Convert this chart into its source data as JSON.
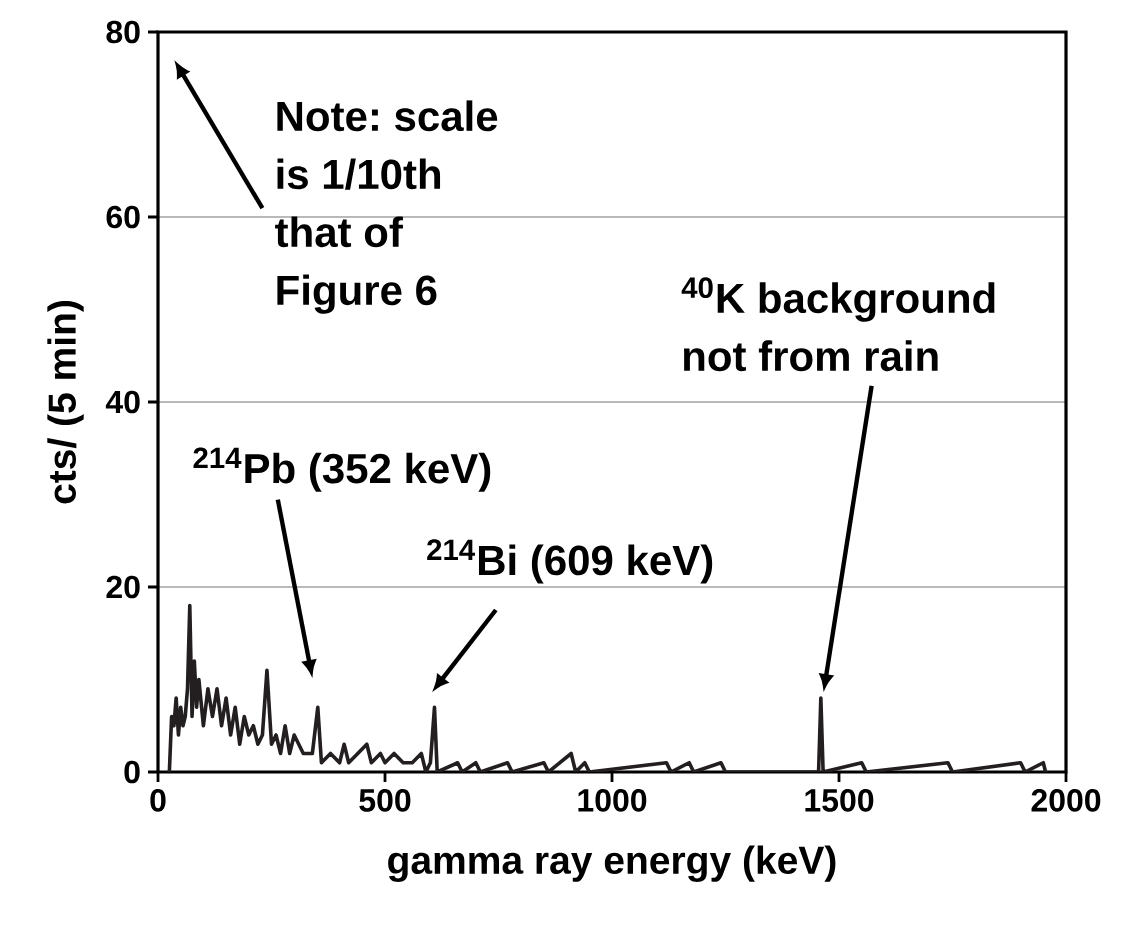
{
  "chart_data": {
    "type": "line",
    "xlabel": "gamma ray energy (keV)",
    "ylabel": "cts/ (5 min)",
    "x": [
      25,
      30,
      35,
      40,
      45,
      50,
      55,
      60,
      65,
      70,
      75,
      80,
      85,
      90,
      100,
      110,
      120,
      130,
      140,
      150,
      160,
      170,
      180,
      190,
      200,
      210,
      220,
      230,
      240,
      250,
      260,
      270,
      280,
      290,
      300,
      320,
      340,
      352,
      360,
      380,
      400,
      410,
      420,
      440,
      460,
      470,
      490,
      500,
      520,
      540,
      560,
      580,
      590,
      600,
      609,
      615,
      660,
      670,
      700,
      710,
      770,
      780,
      850,
      860,
      910,
      920,
      940,
      950,
      1120,
      1130,
      1170,
      1180,
      1240,
      1250,
      1455,
      1460,
      1465,
      1550,
      1560,
      1740,
      1750,
      1900,
      1910,
      1950,
      1955
    ],
    "values": [
      0,
      6,
      5,
      8,
      4,
      7,
      5,
      6,
      9,
      18,
      6,
      12,
      7,
      10,
      5,
      9,
      6,
      9,
      5,
      8,
      4,
      7,
      3,
      6,
      4,
      5,
      3,
      4,
      11,
      3,
      4,
      2,
      5,
      2,
      4,
      2,
      2,
      7,
      1,
      2,
      1,
      3,
      1,
      2,
      3,
      1,
      2,
      1,
      2,
      1,
      1,
      2,
      0,
      1,
      7,
      0,
      1,
      0,
      1,
      0,
      1,
      0,
      1,
      0,
      2,
      0,
      1,
      0,
      1,
      0,
      1,
      0,
      1,
      0,
      0,
      8,
      0,
      1,
      0,
      1,
      0,
      1,
      0,
      1,
      0
    ],
    "color": "#231f20",
    "xlim": [
      0,
      2000
    ],
    "ylim": [
      0,
      80
    ],
    "xticks": [
      0,
      500,
      1000,
      1500,
      2000
    ],
    "yticks": [
      0,
      20,
      40,
      60,
      80
    ],
    "grid": "y",
    "annotations": [
      "Note: scale is 1/10th that of Figure 6",
      "$^{214}$Pb (352 keV)",
      "$^{214}$Bi (609 keV)",
      "$^{40}$K background not from rain"
    ]
  }
}
